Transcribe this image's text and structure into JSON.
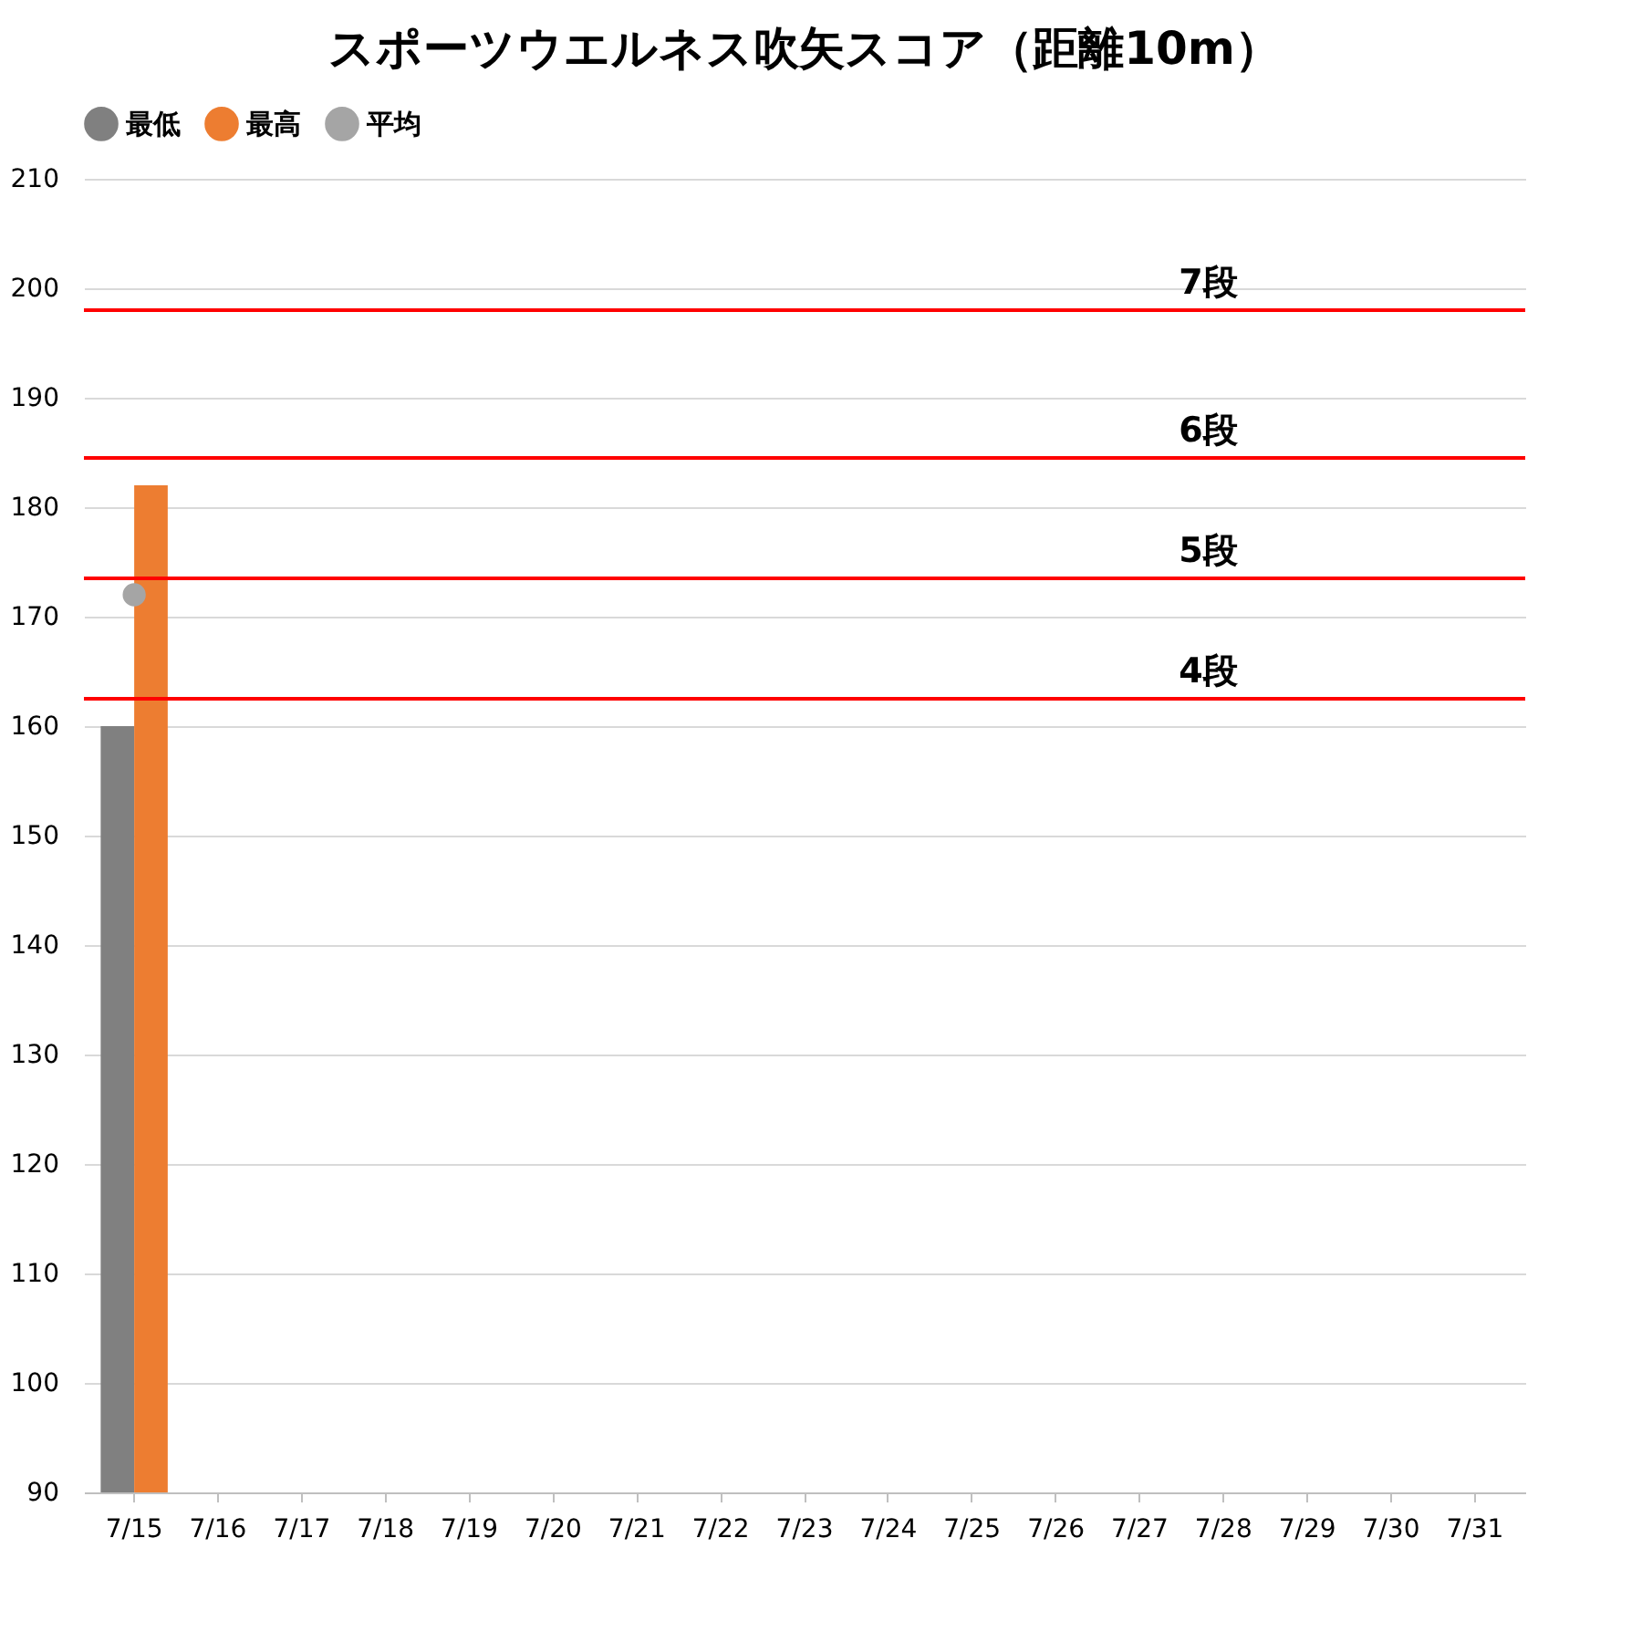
{
  "chart_data": {
    "type": "bar",
    "title": "スポーツウエルネス吹矢スコア（距離10m）",
    "categories": [
      "7/15",
      "7/16",
      "7/17",
      "7/18",
      "7/19",
      "7/20",
      "7/21",
      "7/22",
      "7/23",
      "7/24",
      "7/25",
      "7/26",
      "7/27",
      "7/28",
      "7/29",
      "7/30",
      "7/31"
    ],
    "series": [
      {
        "name": "最低",
        "color": "#808080",
        "values": [
          160,
          null,
          null,
          null,
          null,
          null,
          null,
          null,
          null,
          null,
          null,
          null,
          null,
          null,
          null,
          null,
          null
        ]
      },
      {
        "name": "最高",
        "color": "#ed7d31",
        "values": [
          182,
          null,
          null,
          null,
          null,
          null,
          null,
          null,
          null,
          null,
          null,
          null,
          null,
          null,
          null,
          null,
          null
        ]
      },
      {
        "name": "平均",
        "type": "line",
        "color": "#a5a5a5",
        "marker": "circle",
        "values": [
          172,
          null,
          null,
          null,
          null,
          null,
          null,
          null,
          null,
          null,
          null,
          null,
          null,
          null,
          null,
          null,
          null
        ]
      }
    ],
    "ylim": [
      90,
      210
    ],
    "yticks": [
      90,
      100,
      110,
      120,
      130,
      140,
      150,
      160,
      170,
      180,
      190,
      200,
      210
    ],
    "grid": "y",
    "legend": "top",
    "ref_lines": [
      {
        "axis": "y",
        "value": 198,
        "label": "7段",
        "color": "#ff0000"
      },
      {
        "axis": "y",
        "value": 184.5,
        "label": "6段",
        "color": "#ff0000"
      },
      {
        "axis": "y",
        "value": 173.5,
        "label": "5段",
        "color": "#ff0000"
      },
      {
        "axis": "y",
        "value": 162.5,
        "label": "4段",
        "color": "#ff0000"
      }
    ]
  }
}
